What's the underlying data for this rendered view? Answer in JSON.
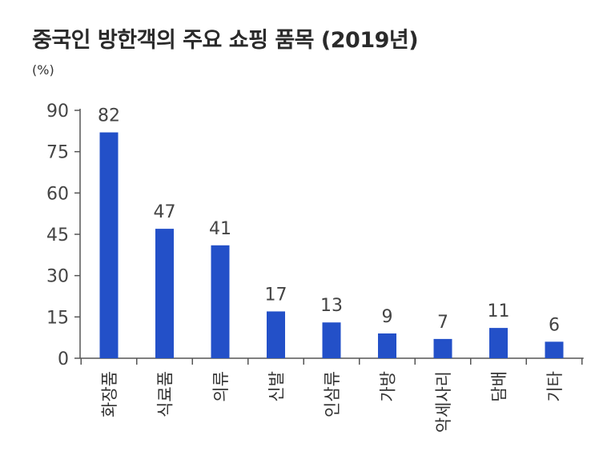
{
  "chart_data": {
    "type": "bar",
    "title": "중국인 방한객의 주요 쇼핑 품목 (2019년)",
    "unit": "(%)",
    "categories": [
      "화장품",
      "식료품",
      "의류",
      "신발",
      "인삼류",
      "가방",
      "악세사리",
      "담배",
      "기타"
    ],
    "values": [
      82,
      47,
      41,
      17,
      13,
      9,
      7,
      11,
      6
    ],
    "y_ticks": [
      "0",
      "15",
      "30",
      "45",
      "60",
      "75",
      "90"
    ],
    "ylim": [
      0,
      90
    ],
    "bar_color": "#2350c8",
    "grid": false,
    "legend": "none"
  }
}
